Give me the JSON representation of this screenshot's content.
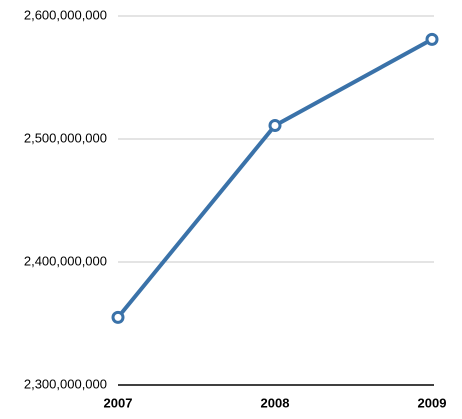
{
  "chart_data": {
    "type": "line",
    "categories": [
      "2007",
      "2008",
      "2009"
    ],
    "series": [
      {
        "name": null,
        "color": "#3a72a9",
        "values": [
          2355000000,
          2511000000,
          2581000000
        ]
      }
    ],
    "ylim": [
      2300000000,
      2600000000
    ],
    "yticks": [
      {
        "value": 2300000000,
        "label": "2,300,000,000"
      },
      {
        "value": 2400000000,
        "label": "2,400,000,000"
      },
      {
        "value": 2500000000,
        "label": "2,500,000,000"
      },
      {
        "value": 2600000000,
        "label": "2,600,000,000"
      }
    ],
    "grid": true
  }
}
